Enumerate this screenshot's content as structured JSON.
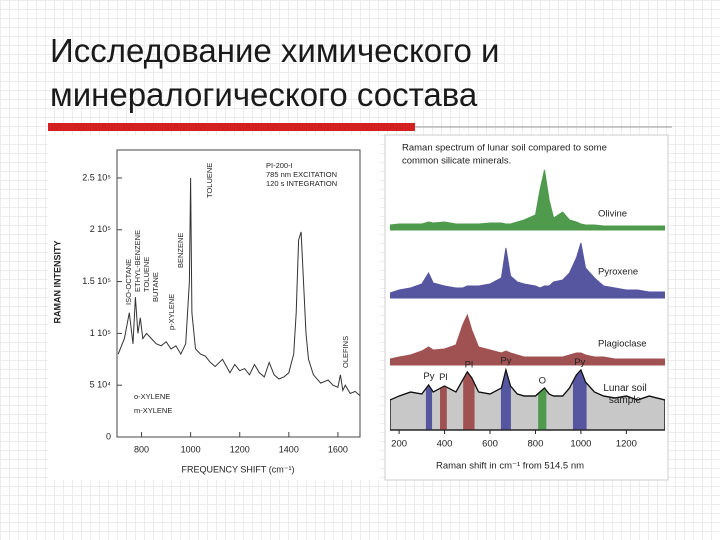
{
  "slide": {
    "title_lines": [
      "Исследование химического и",
      "минералогического состава"
    ]
  },
  "chart_data": [
    {
      "type": "line",
      "x_label": "FREQUENCY SHIFT (cm⁻¹)",
      "y_label": "RAMAN INTENSITY",
      "annotations": [
        "PI-200-I",
        "785 nm EXCITATION",
        "120 s INTEGRATION",
        "ISO-OCTANE",
        "ETHYL-BENZENE",
        "TOLUENE",
        "BUTANE",
        "p-XYLENE",
        "BENZENE",
        "TOLUENE",
        "OLEFINS",
        "o-XYLENE",
        "m-XYLENE"
      ],
      "x": [
        705,
        730,
        750,
        765,
        775,
        785,
        795,
        805,
        820,
        840,
        860,
        880,
        900,
        920,
        940,
        960,
        980,
        995,
        1000,
        1005,
        1020,
        1040,
        1060,
        1080,
        1100,
        1130,
        1160,
        1180,
        1200,
        1220,
        1240,
        1260,
        1280,
        1300,
        1320,
        1340,
        1360,
        1380,
        1400,
        1420,
        1430,
        1440,
        1450,
        1460,
        1470,
        1480,
        1500,
        1530,
        1560,
        1580,
        1600,
        1610,
        1620,
        1630,
        1650,
        1670,
        1690
      ],
      "series": [
        {
          "color": "#333333",
          "values": [
            80000,
            95000,
            120000,
            90000,
            135000,
            100000,
            115000,
            95000,
            100000,
            95000,
            90000,
            88000,
            92000,
            85000,
            88000,
            80000,
            90000,
            150000,
            250000,
            120000,
            85000,
            80000,
            78000,
            72000,
            68000,
            75000,
            62000,
            70000,
            64000,
            66000,
            60000,
            70000,
            62000,
            58000,
            72000,
            60000,
            56000,
            58000,
            62000,
            80000,
            120000,
            190000,
            198000,
            150000,
            100000,
            75000,
            60000,
            52000,
            55000,
            50000,
            48000,
            60000,
            45000,
            50000,
            42000,
            44000,
            40000
          ]
        }
      ],
      "xlim": [
        700,
        1690
      ],
      "ylim": [
        0,
        277000
      ],
      "xticks": [
        800,
        1000,
        1200,
        1400,
        1600
      ],
      "yticks": [
        0,
        {
          "value": 50000,
          "label": "5 10⁴"
        },
        {
          "value": 100000,
          "label": "1 10⁵"
        },
        {
          "value": 150000,
          "label": "1.5 10⁵"
        },
        {
          "value": 200000,
          "label": "2 10⁵"
        },
        {
          "value": 250000,
          "label": "2.5 10⁵"
        }
      ]
    },
    {
      "type": "area",
      "title_lines": [
        "Raman spectrum of lunar soil compared to some",
        "common silicate minerals."
      ],
      "x_label": "Raman shift in cm⁻¹ from 514.5 nm",
      "x": [
        160,
        200,
        250,
        300,
        330,
        350,
        400,
        450,
        480,
        500,
        520,
        550,
        600,
        650,
        670,
        690,
        720,
        750,
        800,
        820,
        840,
        860,
        880,
        920,
        950,
        980,
        1000,
        1020,
        1060,
        1100,
        1150,
        1200,
        1250,
        1300,
        1370
      ],
      "series": [
        {
          "name": "Olivine",
          "color": "#4f9a4c",
          "values": [
            5,
            6,
            6,
            6,
            8,
            7,
            8,
            6,
            6,
            6,
            6,
            6,
            7,
            7,
            6,
            6,
            8,
            10,
            15,
            40,
            60,
            30,
            12,
            18,
            10,
            8,
            6,
            5,
            5,
            4,
            4,
            4,
            4,
            4,
            4
          ]
        },
        {
          "name": "Pyroxene",
          "color": "#5656a0",
          "values": [
            5,
            8,
            10,
            14,
            25,
            15,
            12,
            10,
            10,
            12,
            12,
            12,
            14,
            20,
            50,
            22,
            16,
            14,
            12,
            10,
            12,
            12,
            16,
            18,
            25,
            40,
            55,
            30,
            20,
            12,
            10,
            8,
            8,
            6,
            6
          ]
        },
        {
          "name": "Plagioclase",
          "color": "#a05252",
          "values": [
            6,
            8,
            10,
            14,
            18,
            15,
            16,
            20,
            40,
            50,
            35,
            18,
            15,
            12,
            14,
            12,
            10,
            8,
            8,
            8,
            8,
            8,
            8,
            8,
            10,
            12,
            12,
            10,
            8,
            8,
            6,
            6,
            6,
            6,
            6
          ]
        },
        {
          "name": "Lunar soil sample",
          "color": "#c8c8c8",
          "values": [
            30,
            34,
            38,
            36,
            45,
            38,
            44,
            38,
            50,
            58,
            52,
            38,
            36,
            42,
            60,
            44,
            36,
            34,
            34,
            38,
            42,
            36,
            34,
            34,
            42,
            55,
            60,
            48,
            38,
            34,
            32,
            34,
            30,
            34,
            30
          ]
        }
      ],
      "bands": [
        {
          "label": "Py",
          "x": [
            318,
            345
          ],
          "color": "#5656a0"
        },
        {
          "label": "Pl",
          "x": [
            380,
            410
          ],
          "color": "#a05252"
        },
        {
          "label": "Pl",
          "x": [
            482,
            532
          ],
          "color": "#a05252"
        },
        {
          "label": "Py",
          "x": [
            648,
            692
          ],
          "color": "#5656a0"
        },
        {
          "label": "O",
          "x": [
            812,
            848
          ],
          "color": "#4f9a4c"
        },
        {
          "label": "Py",
          "x": [
            965,
            1025
          ],
          "color": "#5656a0"
        }
      ],
      "xlim": [
        160,
        1370
      ],
      "xticks": [
        200,
        400,
        600,
        800,
        1000,
        1200
      ]
    }
  ]
}
